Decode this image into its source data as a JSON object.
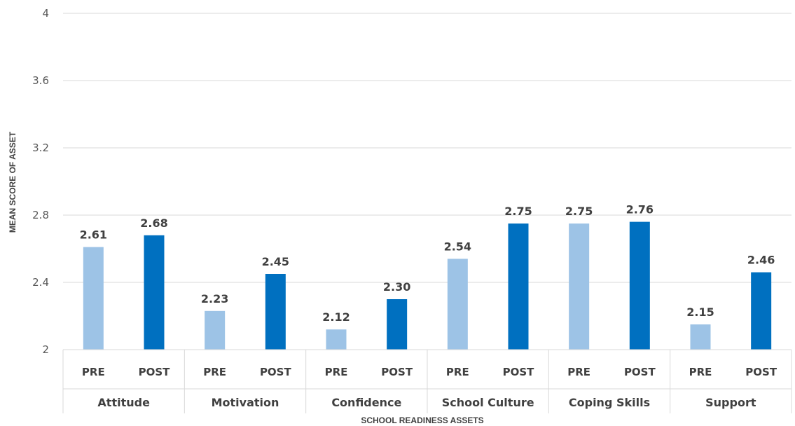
{
  "chart_data": {
    "type": "bar",
    "title": "",
    "xlabel": "SCHOOL READINESS ASSETS",
    "ylabel": "MEAN SCORE OF ASSET",
    "ylim": [
      2,
      4
    ],
    "yticks": [
      "2",
      "2.4",
      "2.8",
      "3.2",
      "3.6",
      "4"
    ],
    "grid": true,
    "legend": "none",
    "categories": [
      "Attitude",
      "Motivation",
      "Confidence",
      "School Culture",
      "Coping Skills",
      "Support"
    ],
    "series": [
      {
        "name": "PRE",
        "color": "#9dc3e6",
        "values": [
          2.61,
          2.23,
          2.12,
          2.54,
          2.75,
          2.15
        ],
        "labels": [
          "2.61",
          "2.23",
          "2.12",
          "2.54",
          "2.75",
          "2.15"
        ]
      },
      {
        "name": "POST",
        "color": "#0070c0",
        "values": [
          2.68,
          2.45,
          2.3,
          2.75,
          2.76,
          2.46
        ],
        "labels": [
          "2.68",
          "2.45",
          "2.30",
          "2.75",
          "2.76",
          "2.46"
        ]
      }
    ],
    "colors": {
      "grid": "#d9d9d9",
      "text": "#404040"
    }
  }
}
